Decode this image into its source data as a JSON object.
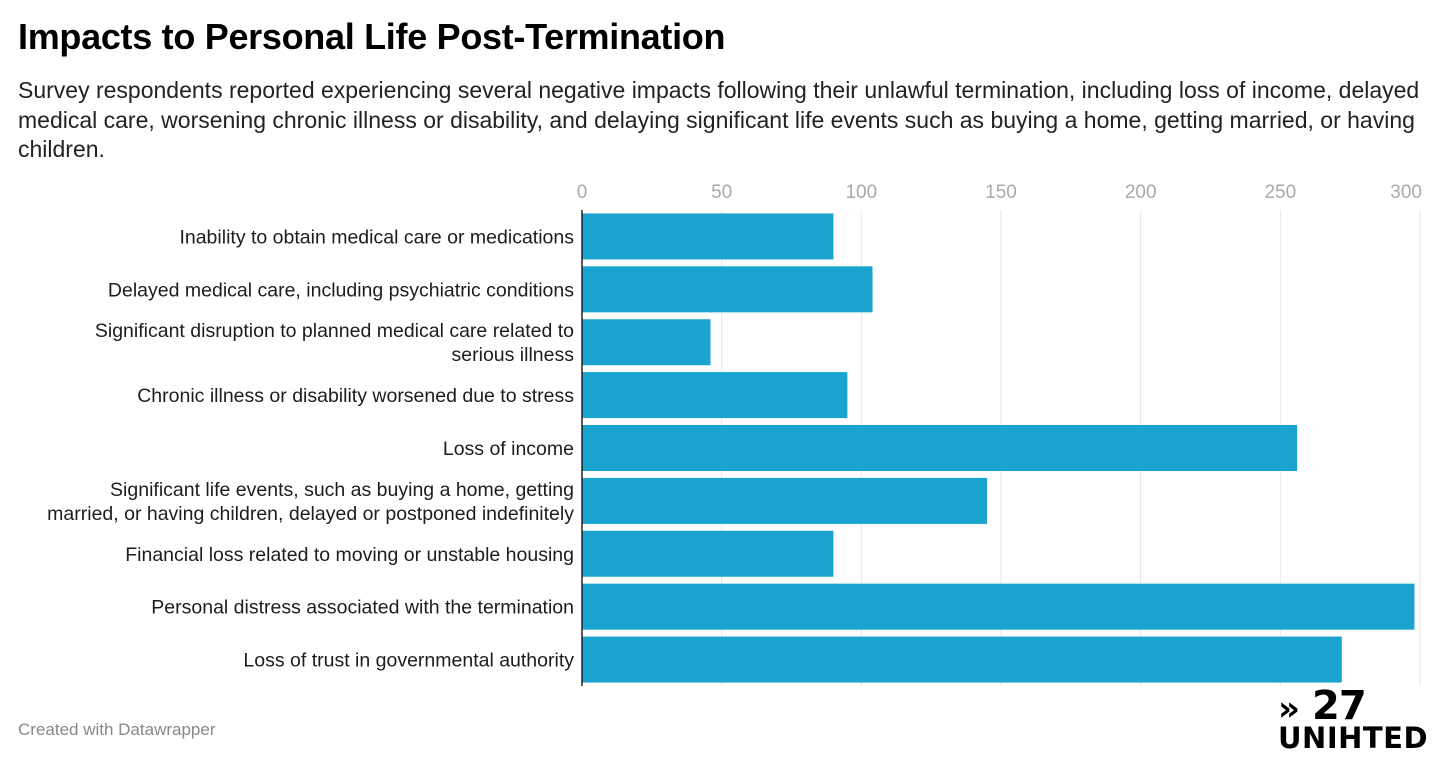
{
  "title": "Impacts to Personal Life Post-Termination",
  "subtitle": "Survey respondents reported experiencing several negative impacts following their unlawful termination, including loss of income, delayed medical care, worsening chronic illness or disability, and delaying significant life events such as buying a home, getting married, or having children.",
  "credit": "Created with Datawrapper",
  "logo": {
    "mark": "»",
    "number": "27",
    "word": "UNIHTED"
  },
  "colors": {
    "bar": "#1aa3cf",
    "grid": "#e6e6e6",
    "tick": "#a9a9a9",
    "axis": "#222222"
  },
  "chart_data": {
    "type": "bar",
    "orientation": "horizontal",
    "categories": [
      [
        "Inability to obtain medical care or medications"
      ],
      [
        "Delayed medical care, including psychiatric conditions"
      ],
      [
        "Significant disruption to planned medical care related to",
        "serious illness"
      ],
      [
        "Chronic illness or disability worsened due to stress"
      ],
      [
        "Loss of income"
      ],
      [
        "Significant life events, such as buying a home, getting",
        "married, or having children, delayed or postponed indefinitely"
      ],
      [
        "Financial loss related to moving or unstable housing"
      ],
      [
        "Personal distress associated with the termination"
      ],
      [
        "Loss of trust in governmental authority"
      ]
    ],
    "values": [
      90,
      104,
      46,
      95,
      256,
      145,
      90,
      298,
      272
    ],
    "xlim": [
      0,
      300
    ],
    "xticks": [
      0,
      50,
      100,
      150,
      200,
      250,
      300
    ],
    "xaxis_position": "top",
    "grid": true,
    "legend": "none",
    "title": "",
    "xlabel": "",
    "ylabel": ""
  }
}
